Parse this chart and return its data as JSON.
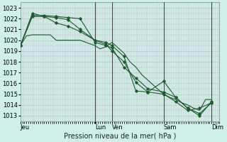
{
  "xlabel": "Pression niveau de la mer( hPa )",
  "bg_color": "#cff0ea",
  "grid_color": "#c8b4c8",
  "line_color": "#1a5c2a",
  "vline_color": "#444444",
  "ylim": [
    1012.5,
    1023.5
  ],
  "yticks": [
    1013,
    1014,
    1015,
    1016,
    1017,
    1018,
    1019,
    1020,
    1021,
    1022,
    1023
  ],
  "day_labels": [
    "Jeu",
    "Lun",
    "Ven",
    "Sam",
    "Dim"
  ],
  "day_positions": [
    0.0,
    0.375,
    0.46,
    0.72,
    0.96
  ],
  "vline_positions": [
    0.375,
    0.46,
    0.72,
    0.96
  ],
  "xlim": [
    0,
    1.0
  ],
  "series": [
    {
      "x": [
        0.0,
        0.03,
        0.06,
        0.09,
        0.12,
        0.15,
        0.18,
        0.21,
        0.24,
        0.27,
        0.3,
        0.33,
        0.375,
        0.4,
        0.43,
        0.46,
        0.49,
        0.52,
        0.55,
        0.58,
        0.61,
        0.64,
        0.67,
        0.7,
        0.72,
        0.75,
        0.78,
        0.81,
        0.84,
        0.87,
        0.9,
        0.93,
        0.96
      ],
      "y": [
        1019.5,
        1020.4,
        1020.5,
        1020.5,
        1020.5,
        1020.5,
        1020.0,
        1020.0,
        1020.0,
        1020.0,
        1020.0,
        1019.8,
        1019.5,
        1019.2,
        1019.4,
        1019.8,
        1019.3,
        1018.8,
        1018.0,
        1017.5,
        1016.8,
        1016.3,
        1015.8,
        1015.3,
        1015.0,
        1014.7,
        1014.5,
        1014.2,
        1014.0,
        1013.7,
        1013.5,
        1014.5,
        1014.5
      ],
      "marker": false
    },
    {
      "x": [
        0.0,
        0.06,
        0.12,
        0.18,
        0.24,
        0.3,
        0.375,
        0.43,
        0.46,
        0.52,
        0.58,
        0.64,
        0.72,
        0.78,
        0.84,
        0.9,
        0.96
      ],
      "y": [
        1019.5,
        1022.3,
        1022.3,
        1022.2,
        1022.1,
        1022.0,
        1019.8,
        1019.5,
        1019.3,
        1017.5,
        1016.5,
        1015.5,
        1015.2,
        1014.7,
        1013.7,
        1013.2,
        1014.2
      ],
      "marker": true
    },
    {
      "x": [
        0.0,
        0.06,
        0.12,
        0.18,
        0.24,
        0.3,
        0.375,
        0.43,
        0.46,
        0.52,
        0.58,
        0.64,
        0.72,
        0.78,
        0.84,
        0.9,
        0.96
      ],
      "y": [
        1019.5,
        1022.5,
        1022.2,
        1022.1,
        1021.9,
        1021.0,
        1020.0,
        1019.6,
        1019.0,
        1018.0,
        1016.1,
        1015.2,
        1016.2,
        1014.7,
        1013.7,
        1013.0,
        1014.3
      ],
      "marker": true
    },
    {
      "x": [
        0.0,
        0.06,
        0.12,
        0.18,
        0.24,
        0.3,
        0.375,
        0.43,
        0.46,
        0.52,
        0.58,
        0.64,
        0.72,
        0.78,
        0.84,
        0.9,
        0.96
      ],
      "y": [
        1019.5,
        1022.2,
        1022.2,
        1021.6,
        1021.3,
        1020.8,
        1020.0,
        1019.8,
        1019.5,
        1018.5,
        1015.3,
        1015.2,
        1015.0,
        1014.3,
        1013.5,
        1013.7,
        1014.2
      ],
      "marker": true
    }
  ]
}
